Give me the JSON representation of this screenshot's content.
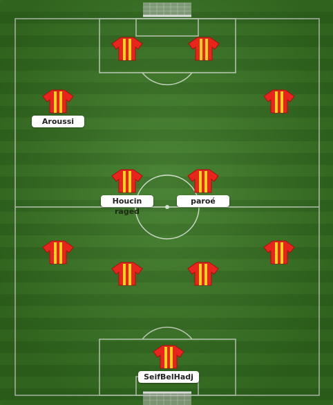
{
  "colors": {
    "shirt_red": "#e8251d",
    "shirt_yellow": "#f7d21a",
    "line_white": "#e8efe4"
  },
  "players": [
    {
      "id": "gk",
      "name": "SeifBelHadj",
      "sub": ""
    },
    {
      "id": "lb",
      "name": "",
      "sub": ""
    },
    {
      "id": "cb1",
      "name": "",
      "sub": ""
    },
    {
      "id": "cb2",
      "name": "",
      "sub": ""
    },
    {
      "id": "rb",
      "name": "",
      "sub": ""
    },
    {
      "id": "cm1",
      "name": "Houcin",
      "sub": "raged"
    },
    {
      "id": "cm2",
      "name": "paroé",
      "sub": ""
    },
    {
      "id": "lw",
      "name": "Aroussi",
      "sub": ""
    },
    {
      "id": "rw",
      "name": "",
      "sub": ""
    },
    {
      "id": "st1",
      "name": "",
      "sub": ""
    },
    {
      "id": "st2",
      "name": "",
      "sub": ""
    }
  ]
}
